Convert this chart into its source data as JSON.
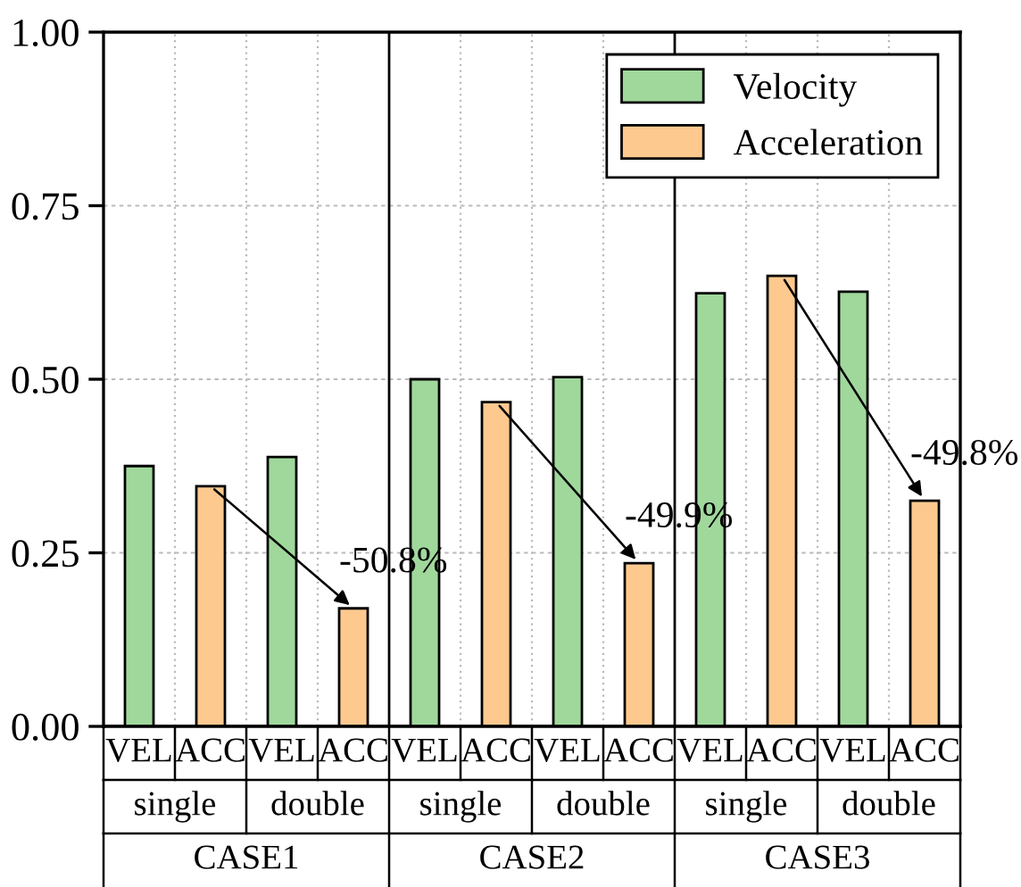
{
  "chart_data": {
    "type": "bar",
    "categories": [
      "VEL",
      "ACC",
      "VEL",
      "ACC",
      "VEL",
      "ACC",
      "VEL",
      "ACC",
      "VEL",
      "ACC",
      "VEL",
      "ACC"
    ],
    "series": [
      {
        "name": "Velocity",
        "color": "#a0d89c",
        "values": [
          0.375,
          null,
          0.388,
          null,
          0.5,
          null,
          0.503,
          null,
          0.624,
          null,
          0.626,
          null
        ]
      },
      {
        "name": "Acceleration",
        "color": "#fdc98f",
        "values": [
          null,
          0.346,
          null,
          0.17,
          null,
          0.467,
          null,
          0.235,
          null,
          0.649,
          null,
          0.325
        ]
      }
    ],
    "ylim": [
      0,
      1
    ],
    "yticks": [
      {
        "value": 0,
        "label": "0.00"
      },
      0.25,
      {
        "value": 0.5,
        "label": "0.50"
      },
      0.75,
      {
        "value": 1,
        "label": "1.00"
      }
    ],
    "annotations": [
      "-50.8%",
      "-49.9%",
      "-49.8%",
      "single",
      "double",
      "single",
      "double",
      "single",
      "double",
      "CASE1",
      "CASE2",
      "CASE3"
    ],
    "grid": true,
    "legend": "top right"
  }
}
